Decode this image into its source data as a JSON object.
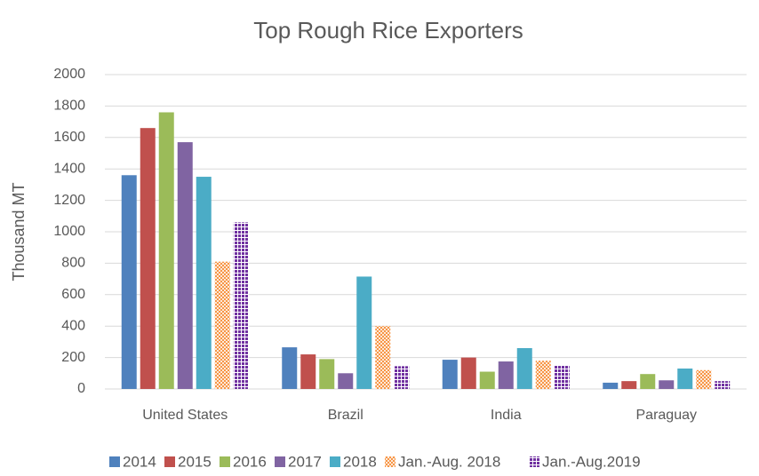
{
  "chart_data": {
    "type": "bar",
    "title": "Top Rough Rice Exporters",
    "y_label": "Thousand MT",
    "categories": [
      "United States",
      "Brazil",
      "India",
      "Paraguay"
    ],
    "series": [
      {
        "name": "2014",
        "color": "#4f81bd",
        "values": [
          1360,
          265,
          186,
          40
        ]
      },
      {
        "name": "2015",
        "color": "#c0504d",
        "values": [
          1660,
          220,
          200,
          50
        ]
      },
      {
        "name": "2016",
        "color": "#9bbb59",
        "values": [
          1760,
          190,
          110,
          95
        ]
      },
      {
        "name": "2017",
        "color": "#8064a2",
        "values": [
          1570,
          100,
          175,
          55
        ]
      },
      {
        "name": "2018",
        "color": "#4bacc6",
        "values": [
          1350,
          715,
          260,
          130
        ]
      },
      {
        "name": "Jan.-Aug. 2018",
        "color": "#f79646",
        "pattern": "checker",
        "values": [
          810,
          400,
          180,
          120
        ]
      },
      {
        "name": "Jan.-Aug.2019",
        "color": "#7030a0",
        "pattern": "dots",
        "values": [
          1060,
          145,
          150,
          50
        ]
      }
    ],
    "ylim": [
      0,
      2000
    ],
    "yticks": [
      0,
      200,
      400,
      600,
      800,
      1000,
      1200,
      1400,
      1600,
      1800,
      2000
    ],
    "grid": true,
    "legend": "bottom"
  }
}
